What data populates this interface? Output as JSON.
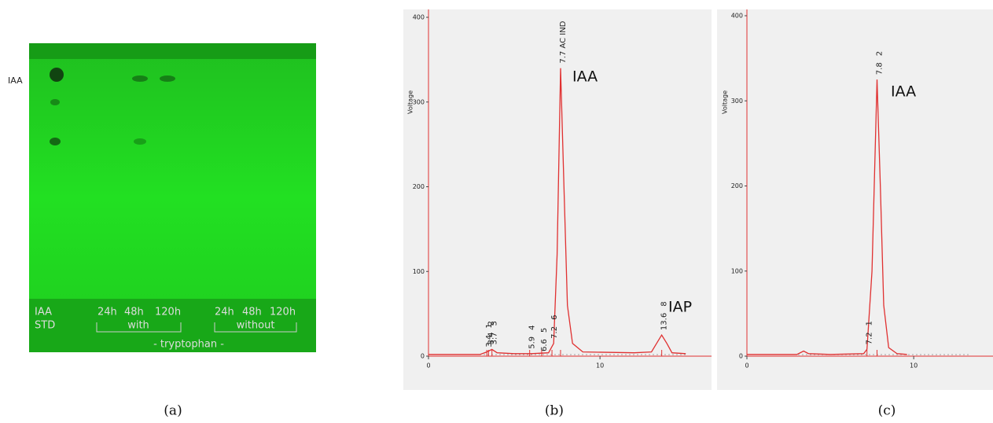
{
  "tlc": {
    "side_label": "IAA",
    "row1": [
      "IAA",
      "24h",
      "48h",
      "120h",
      "24h",
      "48h",
      "120h"
    ],
    "row2": [
      "STD",
      "with",
      "without"
    ],
    "footer": "- tryptophan -"
  },
  "captions": [
    "(a)",
    "(b)",
    "(c)"
  ],
  "chart_data": [
    {
      "type": "line",
      "ylabel": "Voltage",
      "color": "#e03030",
      "x": [
        0,
        3,
        3.4,
        3.7,
        4,
        5,
        6,
        7,
        7.3,
        7.5,
        7.7,
        7.9,
        8.1,
        8.4,
        9,
        12,
        13,
        13.3,
        13.6,
        13.9,
        14.2,
        15
      ],
      "values": [
        2,
        2,
        5,
        8,
        4,
        3,
        3,
        4,
        15,
        120,
        340,
        200,
        60,
        15,
        5,
        4,
        5,
        15,
        25,
        15,
        4,
        3
      ],
      "xlim": [
        0,
        16
      ],
      "xticks": [
        0,
        10
      ],
      "ylim": [
        0,
        400
      ],
      "yticks": [
        0,
        100,
        200,
        300,
        400
      ],
      "peaks": [
        {
          "rt": 3.4,
          "label": "3.4",
          "number": "1"
        },
        {
          "rt": 3.5,
          "label": "3.4",
          "number": "2"
        },
        {
          "rt": 3.7,
          "label": "3.7",
          "number": "3"
        },
        {
          "rt": 5.9,
          "label": "5.9",
          "number": "4"
        },
        {
          "rt": 6.6,
          "label": "6.6",
          "number": "5"
        },
        {
          "rt": 7.2,
          "label": "7.2",
          "number": "6"
        },
        {
          "rt": 7.7,
          "label": "7.7 AC IND"
        },
        {
          "rt": 13.6,
          "label": "13.6",
          "number": "8"
        }
      ],
      "annotations": [
        "IAA",
        "IAP"
      ]
    },
    {
      "type": "line",
      "ylabel": "Voltage",
      "color": "#e03030",
      "x": [
        0,
        3,
        3.4,
        3.7,
        5,
        7,
        7.2,
        7.5,
        7.8,
        8.0,
        8.2,
        8.5,
        9,
        9.6
      ],
      "values": [
        2,
        2,
        6,
        3,
        2,
        3,
        8,
        100,
        325,
        200,
        60,
        10,
        3,
        2
      ],
      "xlim": [
        0,
        14
      ],
      "xticks": [
        0,
        10
      ],
      "ylim": [
        0,
        400
      ],
      "yticks": [
        0,
        100,
        200,
        300,
        400
      ],
      "peaks": [
        {
          "rt": 7.2,
          "label": "7.2",
          "number": "1"
        },
        {
          "rt": 7.8,
          "label": "7.8",
          "number": "2"
        }
      ],
      "annotations": [
        "IAA"
      ]
    }
  ]
}
